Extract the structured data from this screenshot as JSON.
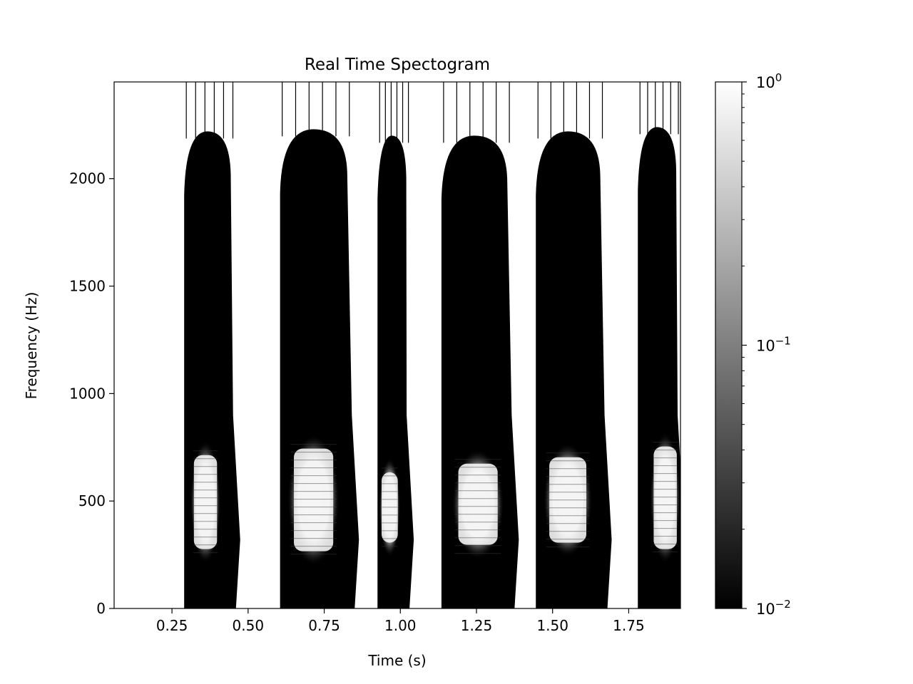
{
  "chart_data": {
    "type": "heatmap",
    "title": "Real Time Spectogram",
    "xlabel": "Time (s)",
    "ylabel": "Frequency (Hz)",
    "xlim": [
      0.06,
      1.92
    ],
    "ylim": [
      0,
      2450
    ],
    "x_ticks": [
      0.25,
      0.5,
      0.75,
      1.0,
      1.25,
      1.5,
      1.75
    ],
    "x_tick_labels": [
      "0.25",
      "0.50",
      "0.75",
      "1.00",
      "1.25",
      "1.50",
      "1.75"
    ],
    "y_ticks": [
      0,
      500,
      1000,
      1500,
      2000
    ],
    "y_tick_labels": [
      "0",
      "500",
      "1000",
      "1500",
      "2000"
    ],
    "grid": false,
    "colormap": "gray",
    "colorbar": {
      "scale": "log",
      "range": [
        0.01,
        1
      ],
      "ticks": [
        {
          "value": 1,
          "base": "10",
          "exp": "0"
        },
        {
          "value": 0.1,
          "base": "10",
          "exp": "−1"
        },
        {
          "value": 0.01,
          "base": "10",
          "exp": "−2"
        }
      ]
    },
    "segments": [
      {
        "start": 0.29,
        "end": 0.46,
        "top_hz": 2220,
        "bright_start": 0.31,
        "bright_end": 0.41,
        "bright_low_hz": 210,
        "bright_high_hz": 780
      },
      {
        "start": 0.605,
        "end": 0.85,
        "top_hz": 2230,
        "bright_start": 0.63,
        "bright_end": 0.8,
        "bright_low_hz": 200,
        "bright_high_hz": 810
      },
      {
        "start": 0.925,
        "end": 1.03,
        "top_hz": 2200,
        "bright_start": 0.93,
        "bright_end": 1.0,
        "bright_low_hz": 240,
        "bright_high_hz": 700
      },
      {
        "start": 1.135,
        "end": 1.375,
        "top_hz": 2200,
        "bright_start": 1.17,
        "bright_end": 1.34,
        "bright_low_hz": 230,
        "bright_high_hz": 740
      },
      {
        "start": 1.445,
        "end": 1.68,
        "top_hz": 2220,
        "bright_start": 1.47,
        "bright_end": 1.63,
        "bright_low_hz": 240,
        "bright_high_hz": 770
      },
      {
        "start": 1.78,
        "end": 1.92,
        "top_hz": 2240,
        "bright_start": 1.82,
        "bright_end": 1.92,
        "bright_low_hz": 210,
        "bright_high_hz": 820
      }
    ]
  }
}
